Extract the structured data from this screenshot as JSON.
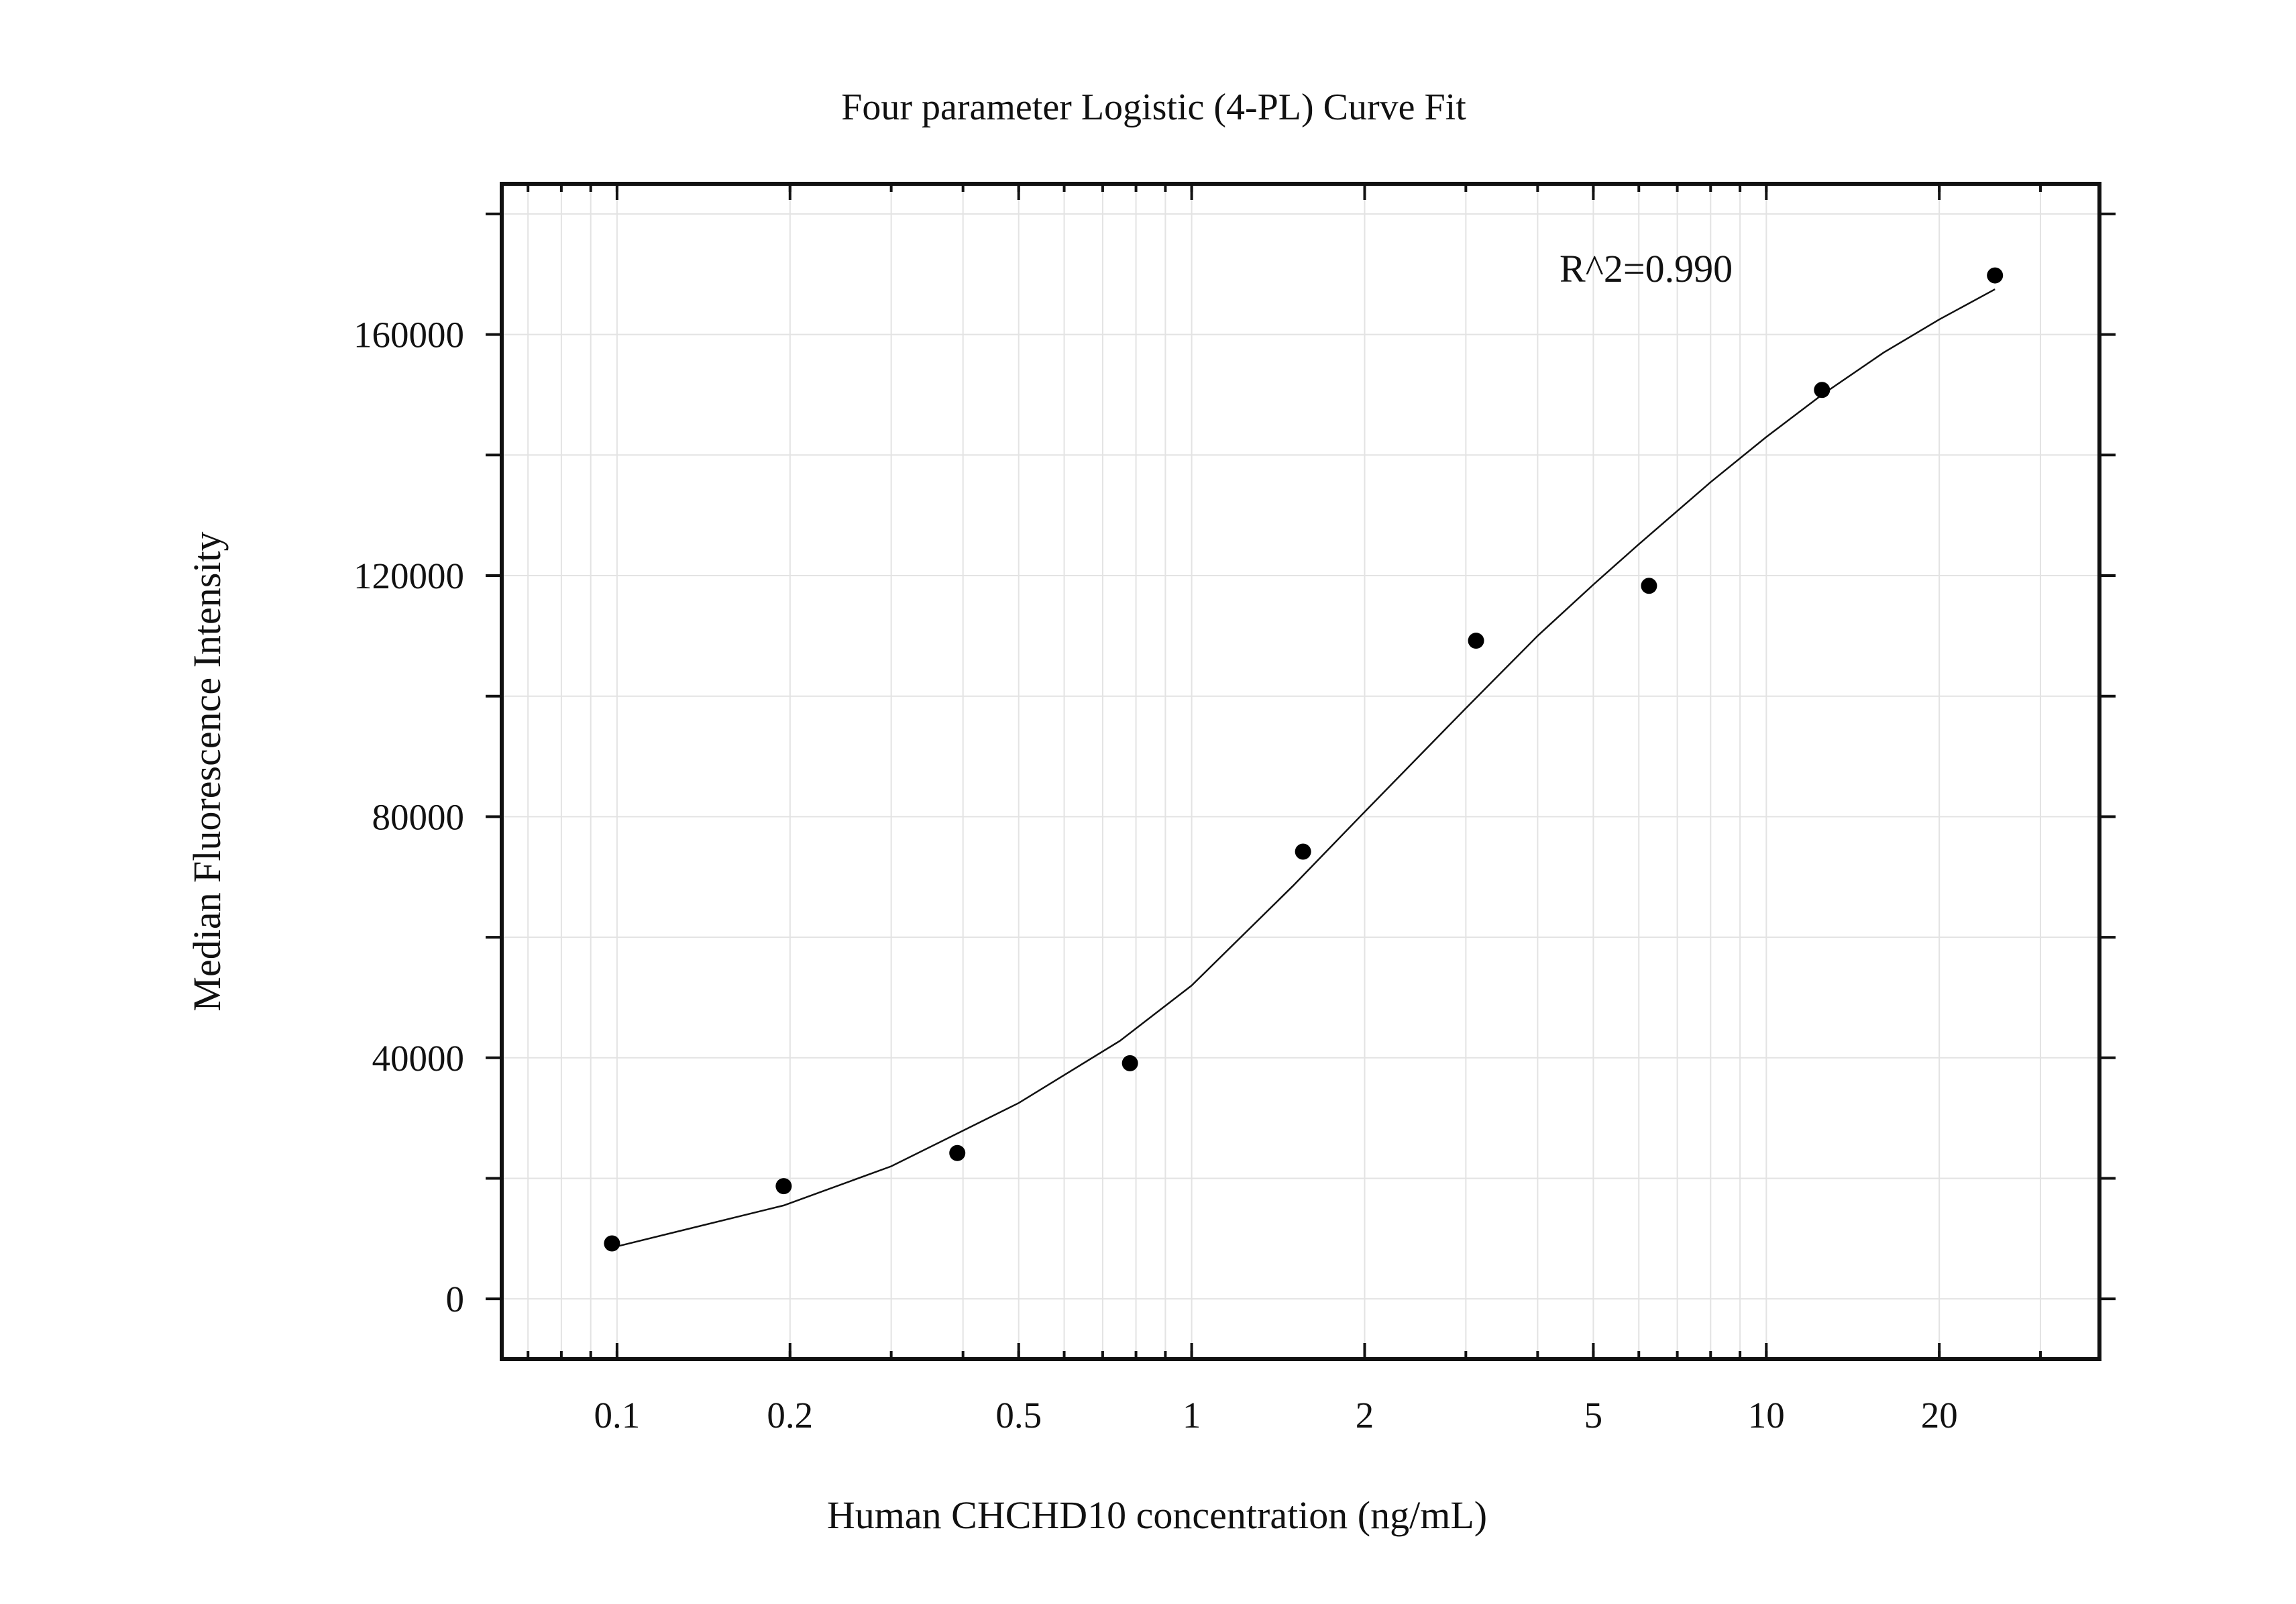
{
  "chart_data": {
    "type": "scatter",
    "title": "Four parameter Logistic (4-PL) Curve Fit",
    "xlabel": "Human CHCHD10 concentration (ng/mL)",
    "ylabel": "Median Fluorescence Intensity",
    "x_scale": "log",
    "xlim": [
      0.063,
      38
    ],
    "ylim": [
      -10000,
      185000
    ],
    "x_ticks": [
      0.1,
      0.2,
      0.5,
      1,
      2,
      5,
      10,
      20
    ],
    "x_tick_labels": [
      "0.1",
      "0.2",
      "0.5",
      "1",
      "2",
      "5",
      "10",
      "20"
    ],
    "y_ticks": [
      0,
      40000,
      80000,
      120000,
      160000
    ],
    "y_tick_labels": [
      "0",
      "40000",
      "80000",
      "120000",
      "160000"
    ],
    "grid": true,
    "annotation": "R^2=0.990",
    "points": {
      "x": [
        0.098,
        0.195,
        0.391,
        0.781,
        1.5625,
        3.125,
        6.25,
        12.5,
        25
      ],
      "y": [
        9200,
        18700,
        24200,
        39100,
        74200,
        109200,
        118300,
        150800,
        169800
      ]
    },
    "fit_curve": {
      "x": [
        0.098,
        0.195,
        0.3,
        0.5,
        0.75,
        1,
        1.5,
        2,
        3,
        4,
        5,
        6,
        8,
        10,
        12.5,
        16,
        20,
        25
      ],
      "y": [
        8500,
        15500,
        22000,
        32500,
        42800,
        52000,
        68500,
        80800,
        98000,
        110000,
        118500,
        125200,
        135500,
        143000,
        150000,
        157000,
        162500,
        167500
      ]
    }
  }
}
